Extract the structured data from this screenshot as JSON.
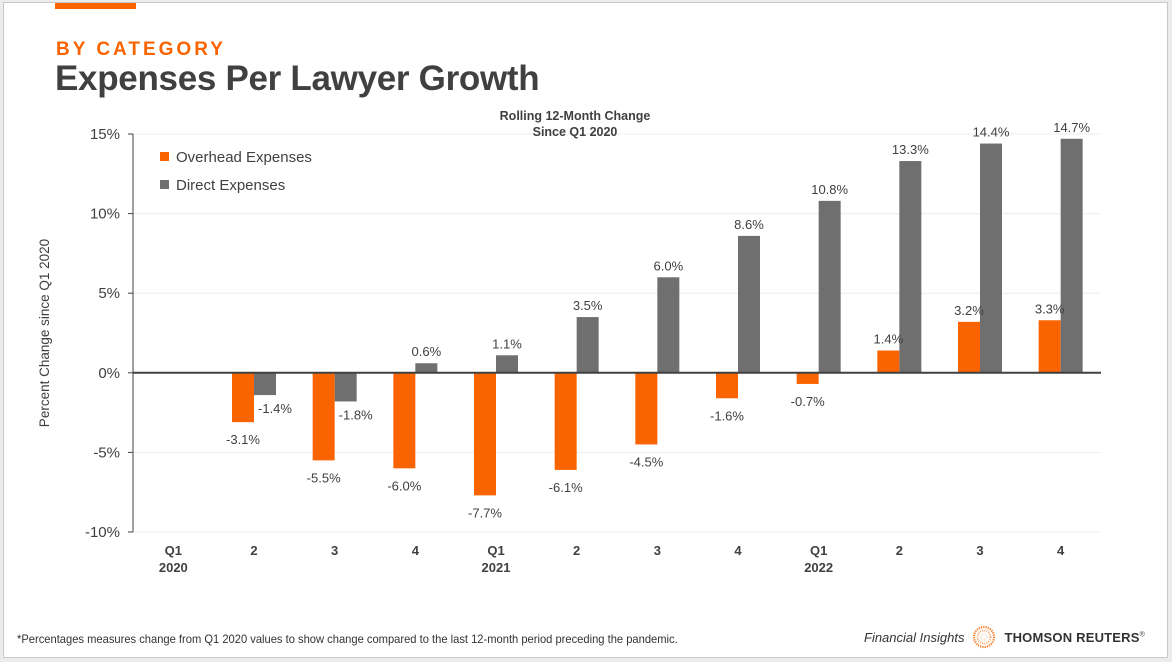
{
  "header": {
    "kicker": "BY CATEGORY",
    "title": "Expenses Per Lawyer Growth"
  },
  "footer": {
    "footnote": "*Percentages measures change from Q1 2020 values to show change compared to the last 12-month period preceding the pandemic.",
    "brand_subtitle": "Financial Insights",
    "brand_name": "THOMSON REUTERS",
    "brand_mark": "®",
    "logo_icon": "thomson-reuters-dot-sphere"
  },
  "colors": {
    "overhead": "#fa6400",
    "direct": "#6f6f6f",
    "accent": "#fa6400",
    "text": "#404040"
  },
  "chart_data": {
    "type": "bar",
    "title": "Rolling 12-Month Change",
    "subtitle": "Since Q1 2020",
    "xlabel": "",
    "ylabel": "Percent Change since Q1 2020",
    "ylim": [
      -10,
      15
    ],
    "yticks": [
      -10,
      -5,
      0,
      5,
      10,
      15
    ],
    "ytick_labels": [
      "-10%",
      "-5%",
      "0%",
      "5%",
      "10%",
      "15%"
    ],
    "grid": true,
    "legend_position": "top-left",
    "categories": [
      {
        "label": "Q1",
        "sublabel": "2020"
      },
      {
        "label": "2",
        "sublabel": ""
      },
      {
        "label": "3",
        "sublabel": ""
      },
      {
        "label": "4",
        "sublabel": ""
      },
      {
        "label": "Q1",
        "sublabel": "2021"
      },
      {
        "label": "2",
        "sublabel": ""
      },
      {
        "label": "3",
        "sublabel": ""
      },
      {
        "label": "4",
        "sublabel": ""
      },
      {
        "label": "Q1",
        "sublabel": "2022"
      },
      {
        "label": "2",
        "sublabel": ""
      },
      {
        "label": "3",
        "sublabel": ""
      },
      {
        "label": "4",
        "sublabel": ""
      }
    ],
    "series": [
      {
        "name": "Overhead Expenses",
        "color": "#fa6400",
        "values": [
          null,
          -3.1,
          -5.5,
          -6.0,
          -7.7,
          -6.1,
          -4.5,
          -1.6,
          -0.7,
          1.4,
          3.2,
          3.3
        ],
        "labels": [
          "",
          "-3.1%",
          "-5.5%",
          "-6.0%",
          "-7.7%",
          "-6.1%",
          "-4.5%",
          "-1.6%",
          "-0.7%",
          "1.4%",
          "3.2%",
          "3.3%"
        ]
      },
      {
        "name": "Direct Expenses",
        "color": "#6f6f6f",
        "values": [
          null,
          -1.4,
          -1.8,
          0.6,
          1.1,
          3.5,
          6.0,
          8.6,
          10.8,
          13.3,
          14.4,
          14.7
        ],
        "labels": [
          "",
          "-1.4%",
          "-1.8%",
          "0.6%",
          "1.1%",
          "3.5%",
          "6.0%",
          "8.6%",
          "10.8%",
          "13.3%",
          "14.4%",
          "14.7%"
        ]
      }
    ]
  }
}
